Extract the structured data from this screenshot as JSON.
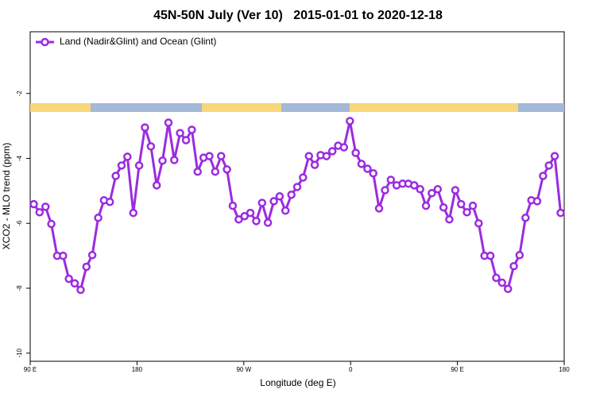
{
  "chart_data": {
    "type": "line",
    "title": "45N-50N July (Ver 10)   2015-01-01 to 2020-12-18",
    "x_label": "Longitude (deg E)",
    "y_label": "XCO2 - MLO trend (ppm)",
    "x": [
      93.0,
      97.9,
      102.9,
      107.8,
      112.7,
      117.7,
      122.6,
      127.5,
      132.5,
      137.4,
      142.3,
      147.3,
      152.2,
      157.1,
      162.1,
      167.0,
      171.9,
      176.9,
      181.8,
      186.7,
      191.7,
      196.6,
      201.5,
      206.5,
      211.4,
      216.3,
      221.3,
      226.2,
      231.1,
      236.1,
      241.0,
      245.9,
      250.9,
      255.8,
      260.7,
      265.7,
      270.6,
      275.5,
      280.5,
      285.4,
      290.3,
      295.3,
      300.2,
      305.1,
      310.1,
      315.0,
      319.9,
      324.9,
      329.8,
      334.7,
      339.7,
      344.6,
      349.5,
      354.4,
      359.4,
      364.3,
      369.2,
      374.2,
      379.1,
      384.0,
      389.0,
      393.9,
      398.8,
      403.8,
      408.7,
      413.6,
      418.6,
      423.5,
      428.4,
      433.4,
      438.3,
      443.2,
      448.2,
      453.1,
      458.0,
      463.0,
      467.9,
      472.8,
      477.8,
      482.7,
      487.6,
      492.6,
      497.5,
      502.4,
      507.4,
      512.3,
      517.2,
      522.2,
      527.1,
      532.0,
      537.0
    ],
    "series": [
      {
        "name": "Land (Nadir&Glint) and Ocean (Glint)",
        "color": "#9b2be0",
        "values": [
          -5.41,
          -5.66,
          -5.49,
          -6.02,
          -7.0,
          -7.0,
          -7.71,
          -7.85,
          -8.05,
          -7.34,
          -6.98,
          -5.83,
          -5.29,
          -5.34,
          -4.54,
          -4.22,
          -3.95,
          -5.68,
          -4.22,
          -3.05,
          -3.63,
          -4.83,
          -4.07,
          -2.9,
          -4.05,
          -3.22,
          -3.44,
          -3.12,
          -4.41,
          -3.98,
          -3.93,
          -4.41,
          -3.93,
          -4.34,
          -5.46,
          -5.88,
          -5.78,
          -5.68,
          -5.93,
          -5.37,
          -5.98,
          -5.32,
          -5.17,
          -5.61,
          -5.12,
          -4.88,
          -4.59,
          -3.93,
          -4.2,
          -3.9,
          -3.93,
          -3.78,
          -3.61,
          -3.66,
          -2.85,
          -3.83,
          -4.17,
          -4.32,
          -4.46,
          -5.54,
          -4.98,
          -4.66,
          -4.83,
          -4.78,
          -4.78,
          -4.83,
          -4.95,
          -5.46,
          -5.07,
          -4.95,
          -5.51,
          -5.88,
          -4.98,
          -5.41,
          -5.66,
          -5.46,
          -6.0,
          -7.0,
          -7.0,
          -7.68,
          -7.83,
          -8.02,
          -7.32,
          -6.98,
          -5.83,
          -5.29,
          -5.32,
          -4.54,
          -4.22,
          -3.93,
          -5.68
        ]
      }
    ],
    "xlim": [
      90,
      540
    ],
    "xticks": [
      {
        "value": 90,
        "label": "90 E"
      },
      180,
      {
        "value": 270,
        "label": "90 W"
      },
      {
        "value": 360,
        "label": "0"
      },
      {
        "value": 450,
        "label": "90 E"
      },
      {
        "value": 540,
        "label": "180"
      }
    ],
    "ylim": [
      -10.25,
      -0.1
    ],
    "yticks": [
      -2,
      -4,
      -6,
      -8,
      -10
    ],
    "legend": "top-left"
  }
}
